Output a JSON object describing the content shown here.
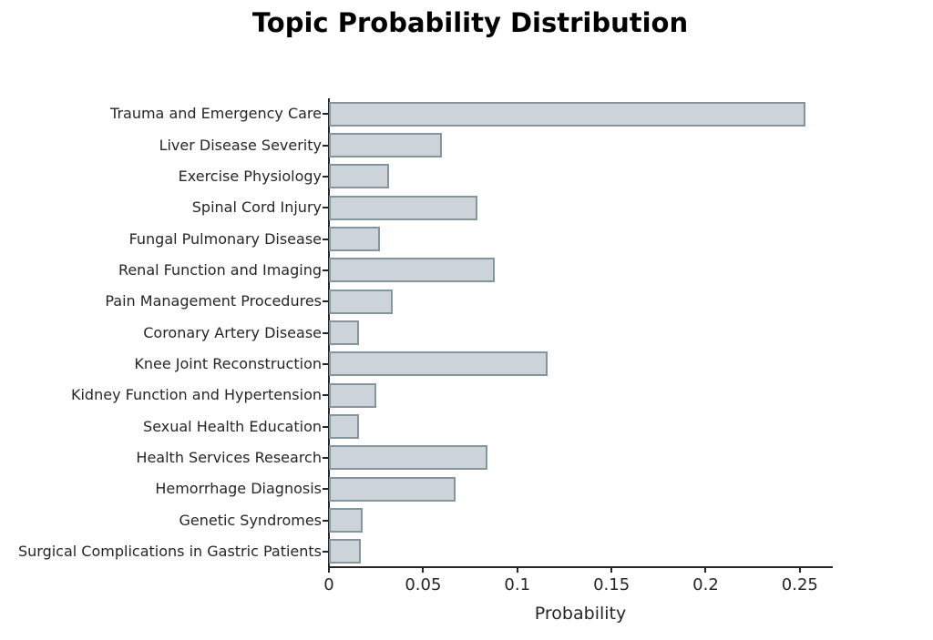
{
  "title": "Topic Probability Distribution",
  "chart_data": {
    "type": "bar",
    "orientation": "horizontal",
    "title": "Topic Probability Distribution",
    "xlabel": "Probability",
    "ylabel": "",
    "categories": [
      "Trauma and Emergency Care",
      "Liver Disease Severity",
      "Exercise Physiology",
      "Spinal Cord Injury",
      "Fungal Pulmonary Disease",
      "Renal Function and Imaging",
      "Pain Management Procedures",
      "Coronary Artery Disease",
      "Knee Joint Reconstruction",
      "Kidney Function and Hypertension",
      "Sexual Health Education",
      "Health Services Research",
      "Hemorrhage Diagnosis",
      "Genetic Syndromes",
      "Surgical Complications in Gastric Patients"
    ],
    "values": [
      0.253,
      0.06,
      0.032,
      0.079,
      0.027,
      0.088,
      0.034,
      0.016,
      0.116,
      0.025,
      0.016,
      0.084,
      0.067,
      0.018,
      0.017
    ],
    "x_ticks": {
      "values": [
        0,
        0.05,
        0.1,
        0.15,
        0.2,
        0.25
      ],
      "labels": [
        "0",
        "0.05",
        "0.1",
        "0.15",
        "0.2",
        "0.25"
      ]
    },
    "xlim": [
      0,
      0.267
    ],
    "grid": false,
    "legend_position": "none",
    "colors": {
      "bar_fill": "#ccd3d9",
      "bar_edge": "#84969d",
      "axis": "#262626",
      "tick_text": "#262626",
      "title_text": "#000000",
      "background": "#ffffff"
    }
  }
}
